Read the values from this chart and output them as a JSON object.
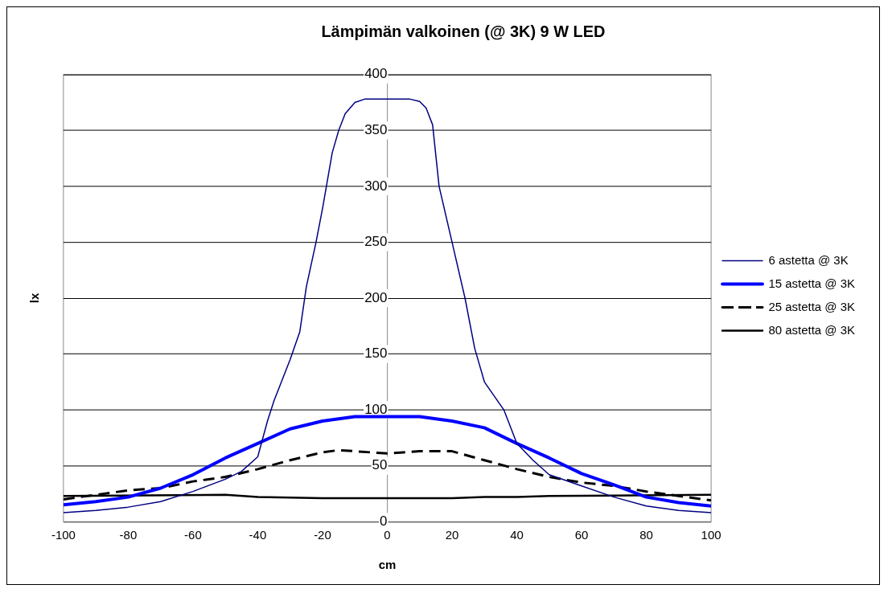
{
  "chart_data": {
    "type": "line",
    "title": "Lämpimän valkoinen (@ 3K) 9 W LED",
    "xlabel": "cm",
    "ylabel": "lx",
    "xlim": [
      -100,
      100
    ],
    "xticks": [
      -100,
      -80,
      -60,
      -40,
      -20,
      0,
      20,
      40,
      60,
      80,
      100
    ],
    "ylim": [
      0,
      400
    ],
    "yticks": [
      0,
      50,
      100,
      150,
      200,
      250,
      300,
      350,
      400
    ],
    "grid": "y",
    "legend": "right",
    "marker": "none",
    "series": [
      {
        "name": "6 astetta @ 3K",
        "color": "#000080",
        "line_style": "solid",
        "x": [
          -100,
          -90,
          -80,
          -70,
          -60,
          -50,
          -45,
          -40,
          -37,
          -35,
          -30,
          -27,
          -25,
          -22,
          -20,
          -17,
          -15,
          -13,
          -10,
          -7,
          0,
          7,
          10,
          12,
          14,
          16,
          20,
          24,
          27,
          30,
          36,
          40,
          45,
          50,
          60,
          70,
          80,
          90,
          100
        ],
        "values": [
          8,
          10,
          13,
          18,
          27,
          38,
          45,
          58,
          90,
          108,
          145,
          170,
          210,
          250,
          280,
          330,
          350,
          365,
          375,
          378,
          378,
          378,
          376,
          370,
          355,
          300,
          250,
          200,
          155,
          125,
          100,
          70,
          55,
          42,
          32,
          22,
          14,
          10,
          8
        ]
      },
      {
        "name": "15 astetta @ 3K",
        "color": "#0000ff",
        "line_style": "solid",
        "x": [
          -100,
          -90,
          -80,
          -70,
          -60,
          -50,
          -40,
          -30,
          -20,
          -10,
          0,
          10,
          20,
          30,
          40,
          50,
          60,
          70,
          80,
          90,
          100
        ],
        "values": [
          15,
          18,
          22,
          30,
          42,
          57,
          70,
          83,
          90,
          94,
          94,
          94,
          90,
          84,
          70,
          57,
          43,
          33,
          22,
          17,
          14
        ]
      },
      {
        "name": "25 astetta @ 3K",
        "color": "#000000",
        "line_style": "dashed",
        "x": [
          -100,
          -90,
          -80,
          -70,
          -60,
          -50,
          -40,
          -30,
          -20,
          -15,
          -5,
          0,
          5,
          10,
          20,
          30,
          40,
          50,
          60,
          70,
          80,
          90,
          100
        ],
        "values": [
          20,
          24,
          28,
          30,
          36,
          40,
          47,
          55,
          62,
          64,
          62,
          61,
          62,
          63,
          63,
          55,
          47,
          40,
          35,
          32,
          27,
          23,
          19
        ]
      },
      {
        "name": "80 astetta @ 3K",
        "color": "#000000",
        "line_style": "solid",
        "x": [
          -100,
          -50,
          -40,
          -20,
          20,
          30,
          40,
          50,
          100
        ],
        "values": [
          23,
          24,
          22,
          21,
          21,
          22,
          22,
          23,
          24
        ]
      }
    ]
  }
}
